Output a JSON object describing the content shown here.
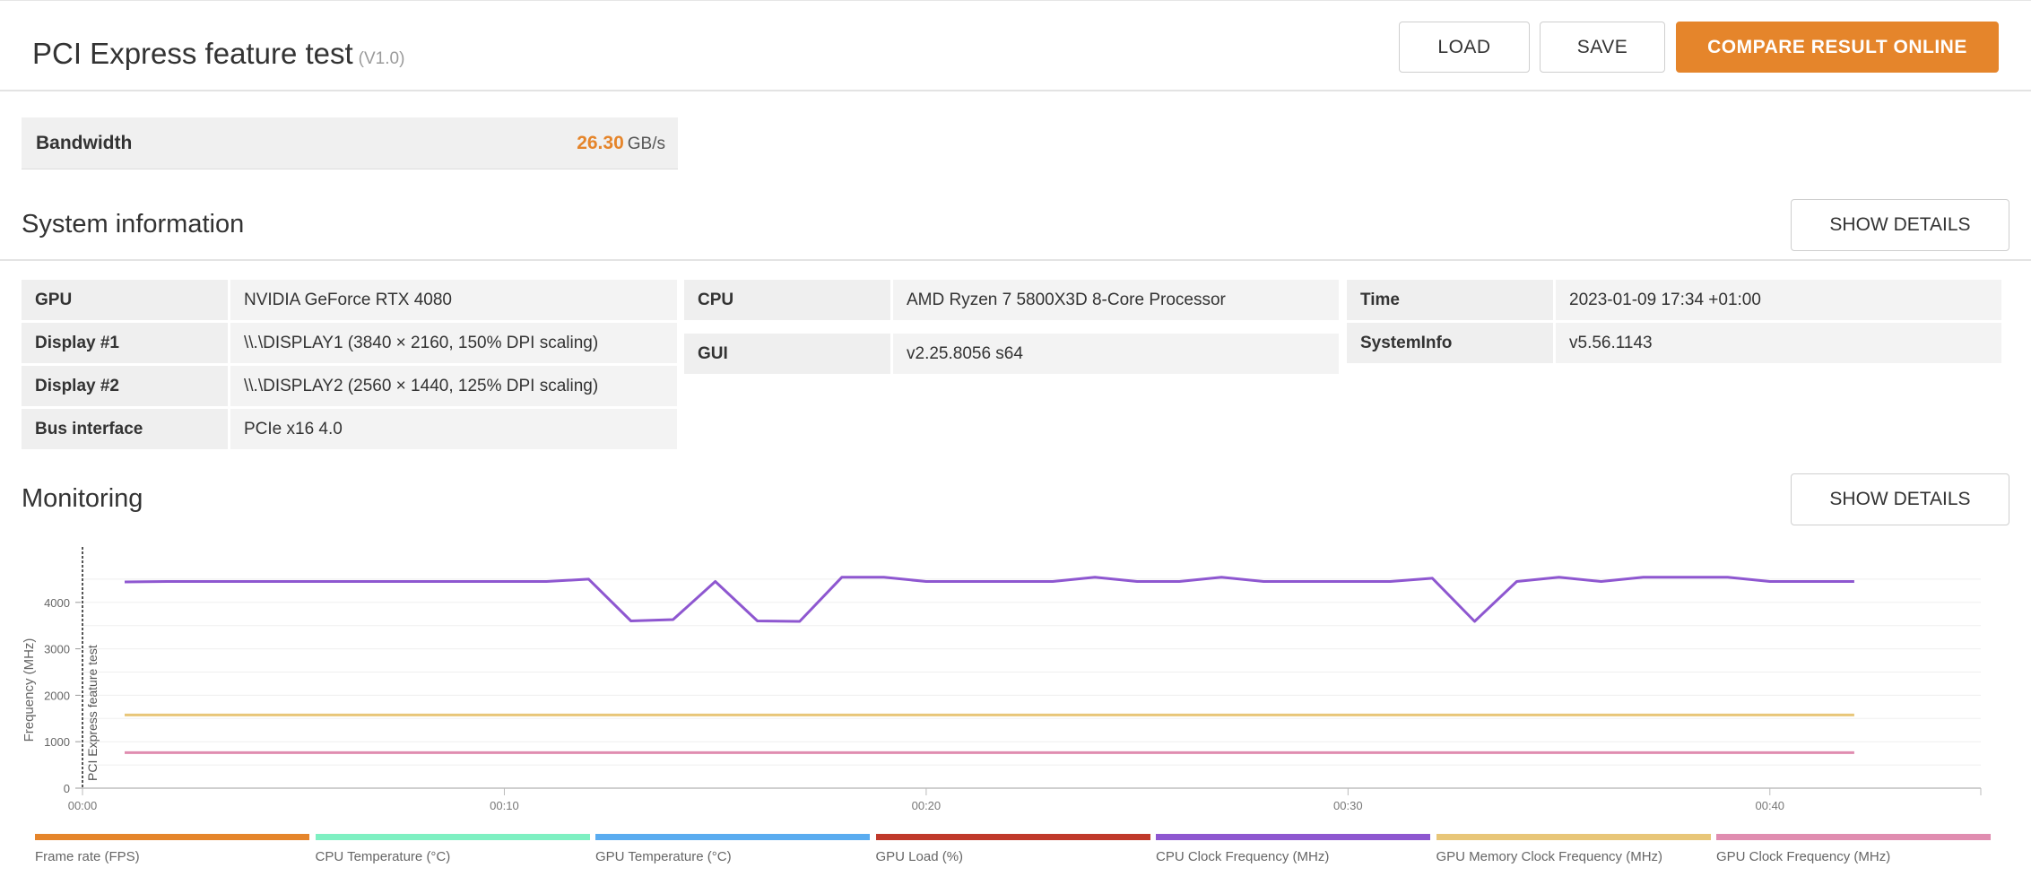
{
  "header": {
    "title": "PCI Express feature test",
    "version": "(V1.0)",
    "load_label": "LOAD",
    "save_label": "SAVE",
    "compare_label": "COMPARE RESULT ONLINE"
  },
  "bandwidth": {
    "label": "Bandwidth",
    "value": "26.30",
    "unit": "GB/s"
  },
  "system_information": {
    "title": "System information",
    "details_label": "SHOW DETAILS",
    "col1": [
      {
        "label": "GPU",
        "value": "NVIDIA GeForce RTX 4080"
      },
      {
        "label": "Display #1",
        "value": "\\\\.\\DISPLAY1 (3840 × 2160, 150% DPI scaling)"
      },
      {
        "label": "Display #2",
        "value": "\\\\.\\DISPLAY2 (2560 × 1440, 125% DPI scaling)"
      },
      {
        "label": "Bus interface",
        "value": "PCIe x16 4.0"
      }
    ],
    "col2": [
      {
        "label": "CPU",
        "value": "AMD Ryzen 7 5800X3D 8-Core Processor"
      },
      {
        "label": "GUI",
        "value": "v2.25.8056 s64"
      }
    ],
    "col3": [
      {
        "label": "Time",
        "value": "2023-01-09 17:34 +01:00"
      },
      {
        "label": "SystemInfo",
        "value": "v5.56.1143"
      }
    ]
  },
  "monitoring": {
    "title": "Monitoring",
    "details_label": "SHOW DETAILS",
    "legend": [
      {
        "name": "Frame rate (FPS)",
        "color": "#e5852b"
      },
      {
        "name": "CPU Temperature (°C)",
        "color": "#7ef0c2"
      },
      {
        "name": "GPU Temperature (°C)",
        "color": "#5aacf0"
      },
      {
        "name": "GPU Load (%)",
        "color": "#c0392b"
      },
      {
        "name": "CPU Clock Frequency (MHz)",
        "color": "#8e57d0"
      },
      {
        "name": "GPU Memory Clock Frequency (MHz)",
        "color": "#e8c678"
      },
      {
        "name": "GPU Clock Frequency (MHz)",
        "color": "#e08db0"
      }
    ]
  },
  "chart_data": {
    "type": "line",
    "ylabel": "Frequency (MHz)",
    "marker_label": "PCI Express feature test",
    "yticks": [
      0,
      1000,
      2000,
      3000,
      4000
    ],
    "xticks": [
      "00:00",
      "00:10",
      "00:20",
      "00:30",
      "00:40"
    ],
    "xtick_seconds": [
      0,
      10,
      20,
      30,
      40
    ],
    "xlim": [
      0,
      45
    ],
    "ylim": [
      0,
      5000
    ],
    "series": [
      {
        "name": "CPU Clock Frequency (MHz)",
        "color": "#8e57d0",
        "x": [
          1,
          2,
          3,
          4,
          5,
          6,
          7,
          8,
          9,
          10,
          11,
          12,
          13,
          14,
          15,
          16,
          17,
          18,
          19,
          20,
          21,
          22,
          23,
          24,
          25,
          26,
          27,
          28,
          29,
          30,
          31,
          32,
          33,
          34,
          35,
          36,
          37,
          38,
          39,
          40,
          41,
          42
        ],
        "y": [
          4440,
          4450,
          4450,
          4450,
          4450,
          4450,
          4450,
          4450,
          4450,
          4450,
          4450,
          4500,
          3600,
          3630,
          4450,
          3600,
          3590,
          4540,
          4540,
          4450,
          4450,
          4450,
          4450,
          4540,
          4450,
          4450,
          4540,
          4450,
          4450,
          4450,
          4450,
          4520,
          3590,
          4450,
          4540,
          4450,
          4540,
          4540,
          4540,
          4450,
          4450,
          4450
        ]
      },
      {
        "name": "GPU Memory Clock Frequency (MHz)",
        "color": "#e8c678",
        "x": [
          1,
          42
        ],
        "y": [
          1575,
          1575
        ]
      },
      {
        "name": "GPU Clock Frequency (MHz)",
        "color": "#e08db0",
        "x": [
          1,
          42
        ],
        "y": [
          765,
          765
        ]
      }
    ]
  }
}
